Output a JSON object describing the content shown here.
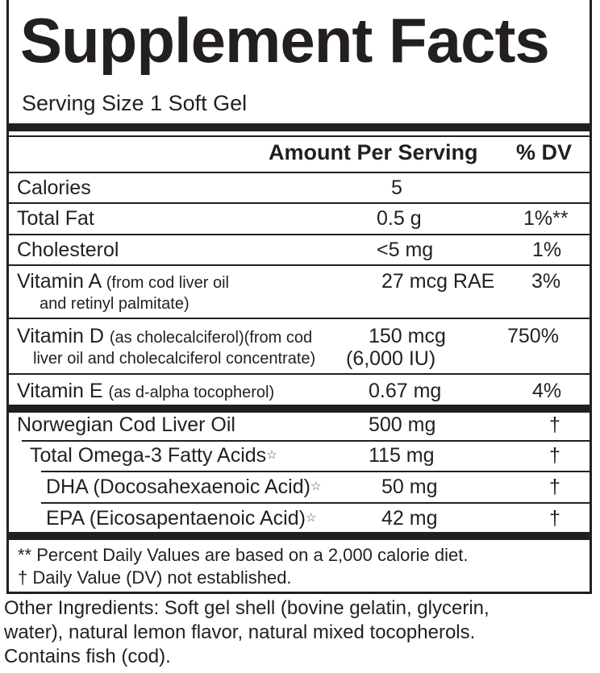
{
  "title": "Supplement Facts",
  "serving_size": "Serving Size 1 Soft Gel",
  "header": {
    "amount": "Amount Per Serving",
    "dv": "% DV"
  },
  "rows": [
    {
      "name": "Calories",
      "amount": "5",
      "dv": ""
    },
    {
      "name": "Total Fat",
      "amount": "0.5 g",
      "dv": "1%**"
    },
    {
      "name": "Cholesterol",
      "amount": "<5 mg",
      "dv": "1%"
    },
    {
      "name": "Vitamin A",
      "note": "(from cod liver oil",
      "note2": "and retinyl palmitate)",
      "amount": "27 mcg RAE",
      "dv": "3%"
    },
    {
      "name": "Vitamin D",
      "note": "(as cholecalciferol)(from cod",
      "note2": "liver oil and cholecalciferol concentrate)",
      "amount": "150 mcg",
      "amount2": "(6,000 IU)",
      "dv": "750%"
    },
    {
      "name": "Vitamin E",
      "note": "(as d-alpha tocopherol)",
      "amount": "0.67 mg",
      "dv": "4%"
    }
  ],
  "oil_rows": [
    {
      "name": "Norwegian Cod Liver Oil",
      "amount": "500 mg",
      "dv": "†"
    },
    {
      "name": "Total Omega-3 Fatty Acids",
      "star": "☆",
      "amount": "115 mg",
      "dv": "†"
    },
    {
      "name": "DHA (Docosahexaenoic Acid)",
      "star": "☆",
      "amount": "50 mg",
      "dv": "†"
    },
    {
      "name": "EPA (Eicosapentaenoic Acid)",
      "star": "☆",
      "amount": "42 mg",
      "dv": "†"
    }
  ],
  "footnotes": [
    "** Percent Daily Values are based on a 2,000 calorie diet.",
    "† Daily Value (DV) not established."
  ],
  "other_ingredients": [
    "Other Ingredients:  Soft gel shell (bovine gelatin, glycerin,",
    "water), natural lemon flavor, natural mixed tocopherols.",
    "Contains fish (cod)."
  ]
}
